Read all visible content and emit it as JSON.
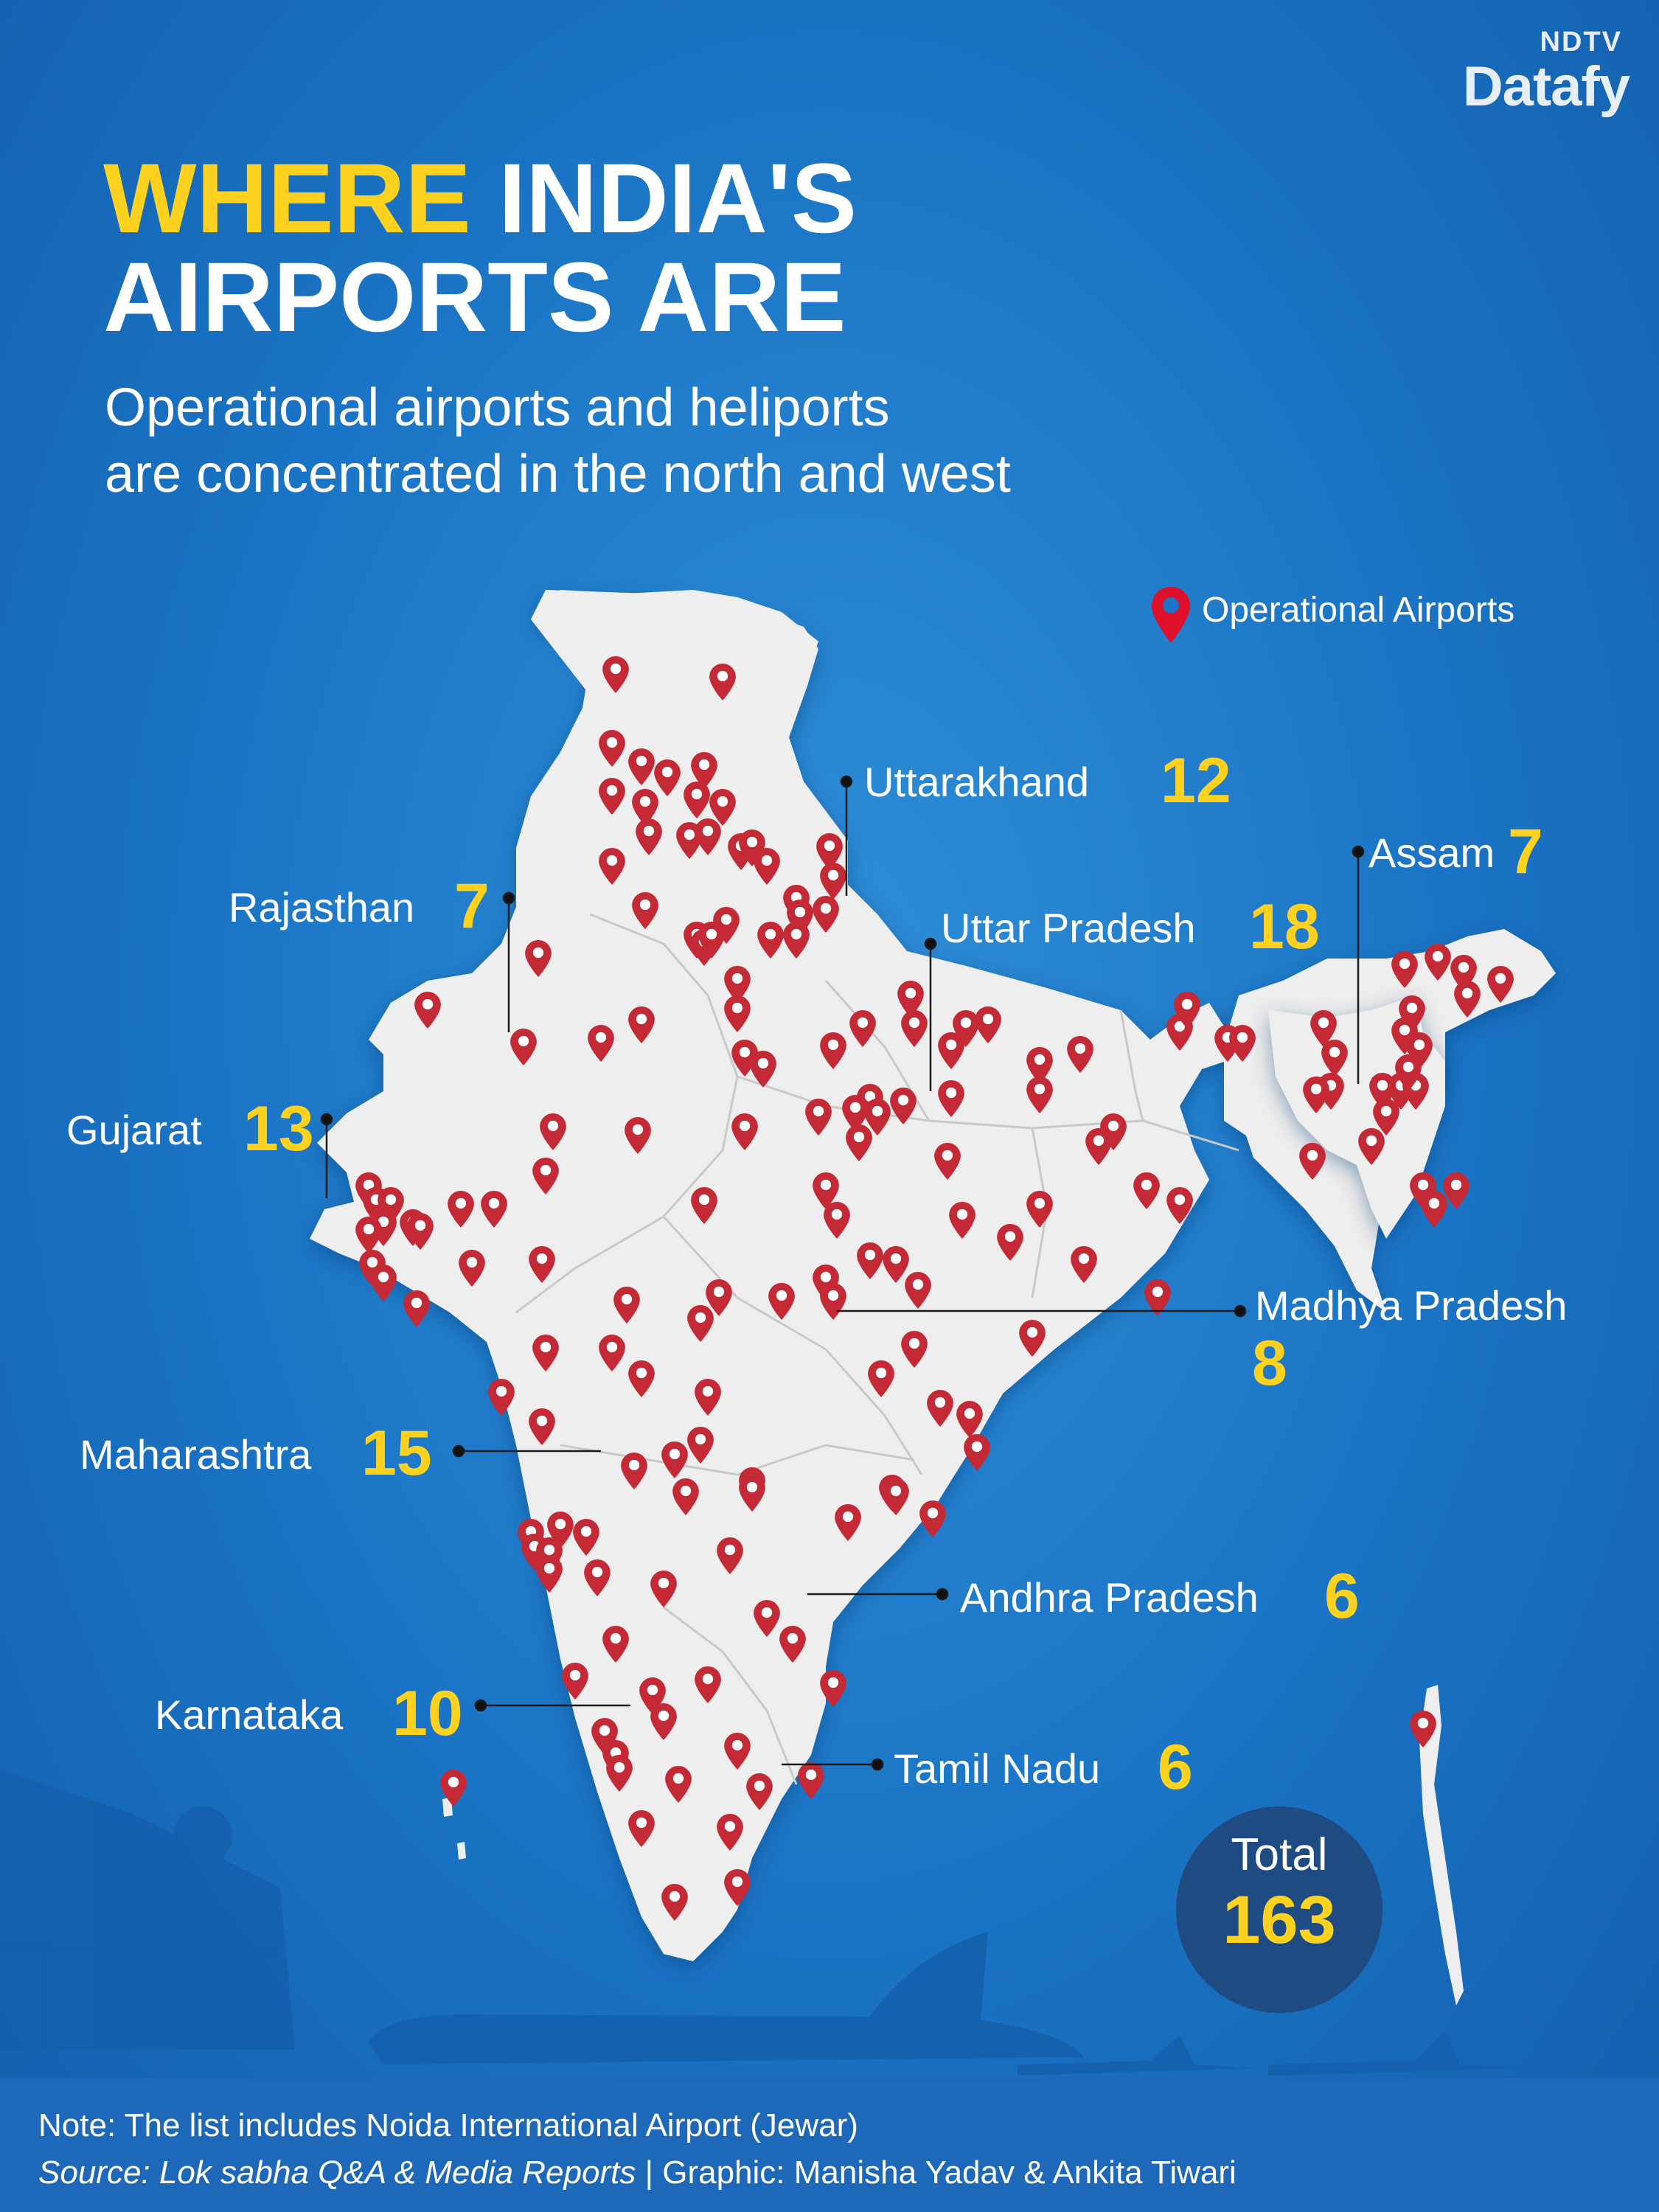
{
  "brand": {
    "top": "NDTV",
    "bottom": "Datafy"
  },
  "title": {
    "highlight": "WHERE",
    "rest_line1": "INDIA'S",
    "line2": "AIRPORTS ARE"
  },
  "subtitle": {
    "line1": "Operational airports and heliports",
    "line2": "are concentrated in the north and west"
  },
  "legend": {
    "label": "Operational Airports",
    "marker_color": "#e0102b"
  },
  "colors": {
    "background": "#1a73c4",
    "land": "#eeeeee",
    "pin": "#c42a35",
    "highlight": "#ffd21f",
    "footer": "#1d68b8",
    "total_circle": "#1e4b82"
  },
  "states": [
    {
      "name": "Uttarakhand",
      "count": "12"
    },
    {
      "name": "Assam",
      "count": "7"
    },
    {
      "name": "Rajasthan",
      "count": "7"
    },
    {
      "name": "Uttar Pradesh",
      "count": "18"
    },
    {
      "name": "Gujarat",
      "count": "13"
    },
    {
      "name": "Madhya Pradesh",
      "count": "8"
    },
    {
      "name": "Maharashtra",
      "count": "15"
    },
    {
      "name": "Andhra Pradesh",
      "count": "6"
    },
    {
      "name": "Karnataka",
      "count": "10"
    },
    {
      "name": "Tamil Nadu",
      "count": "6"
    }
  ],
  "total": {
    "label": "Total",
    "value": "163"
  },
  "footer": {
    "note": "Note: The list includes Noida International Airport (Jewar)",
    "source_italic": "Source: Lok sabha Q&A & Media Reports",
    "credit": " | Graphic: Manisha Yadav & Ankita Tiwari"
  },
  "pin_icon": "map-pin-icon"
}
